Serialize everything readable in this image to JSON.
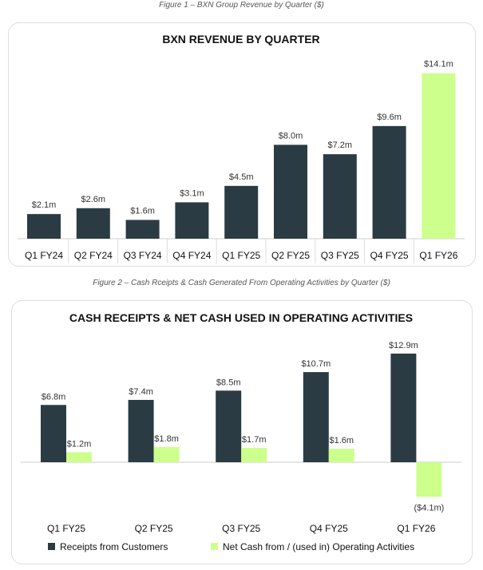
{
  "colors": {
    "dark": "#2b3b43",
    "green": "#ccff8c"
  },
  "chart_data": [
    {
      "type": "bar",
      "caption": "Figure 1 – BXN Group Revenue by Quarter ($)",
      "title": "BXN REVENUE BY QUARTER",
      "categories": [
        "Q1 FY24",
        "Q2 FY24",
        "Q3 FY24",
        "Q4 FY24",
        "Q1 FY25",
        "Q2 FY25",
        "Q3 FY25",
        "Q4 FY25",
        "Q1 FY26"
      ],
      "values": [
        2.1,
        2.6,
        1.6,
        3.1,
        4.5,
        8.0,
        7.2,
        9.6,
        14.1
      ],
      "labels": [
        "$2.1m",
        "$2.6m",
        "$1.6m",
        "$3.1m",
        "$4.5m",
        "$8.0m",
        "$7.2m",
        "$9.6m",
        "$14.1m"
      ],
      "highlight_last": true,
      "grid": false
    },
    {
      "type": "bar",
      "caption": "Figure 2 – Cash Rceipts & Cash Generated From Operating Activities by Quarter ($)",
      "title": "CASH RECEIPTS & NET CASH USED IN OPERATING ACTIVITIES",
      "categories": [
        "Q1 FY25",
        "Q2 FY25",
        "Q3 FY25",
        "Q4 FY25",
        "Q1 FY26"
      ],
      "series": [
        {
          "name": "Receipts from Customers",
          "values": [
            6.8,
            7.4,
            8.5,
            10.7,
            12.9
          ],
          "labels": [
            "$6.8m",
            "$7.4m",
            "$8.5m",
            "$10.7m",
            "$12.9m"
          ]
        },
        {
          "name": "Net Cash from / (used in) Operating Activities",
          "values": [
            1.2,
            1.8,
            1.7,
            1.6,
            -4.1
          ],
          "labels": [
            "$1.2m",
            "$1.8m",
            "$1.7m",
            "$1.6m",
            "($4.1m)"
          ]
        }
      ],
      "legend": "bottom",
      "grid": false
    }
  ]
}
